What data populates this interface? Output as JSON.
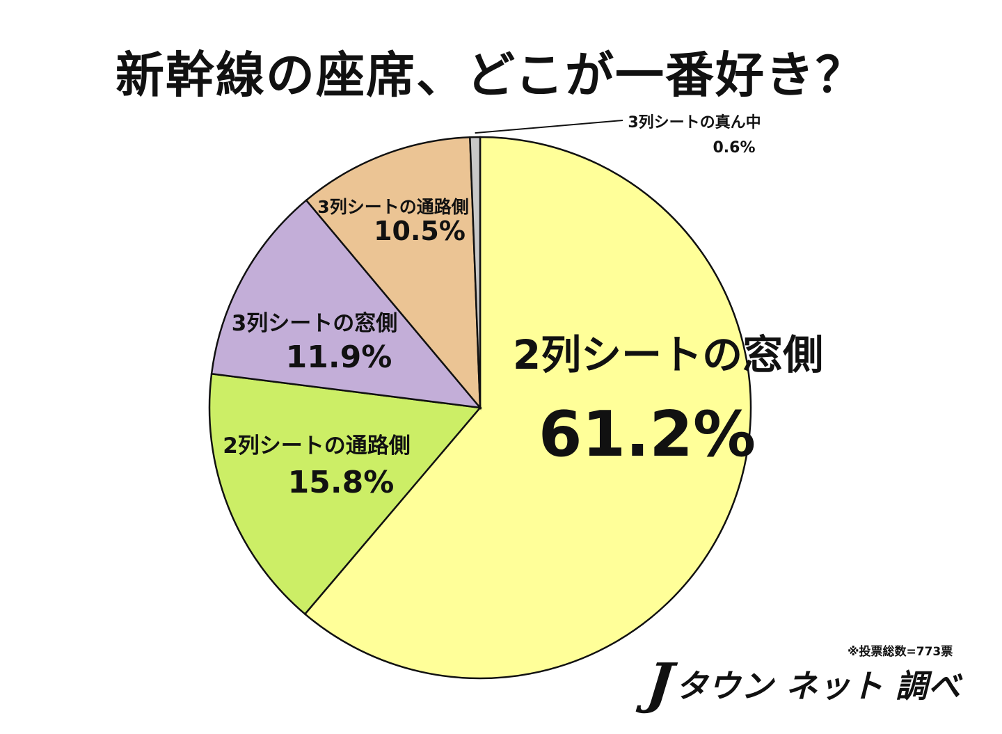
{
  "chart_data": {
    "type": "pie",
    "title": "新幹線の座席、どこが一番好き？",
    "slices": [
      {
        "label": "2列シートの窓側",
        "value": 61.2,
        "value_text": "61.2%",
        "color": "#ffff99"
      },
      {
        "label": "2列シートの通路側",
        "value": 15.8,
        "value_text": "15.8%",
        "color": "#ccee66"
      },
      {
        "label": "3列シートの窓側",
        "value": 11.9,
        "value_text": "11.9%",
        "color": "#c3aed8"
      },
      {
        "label": "3列シートの通路側",
        "value": 10.5,
        "value_text": "10.5%",
        "color": "#ebc494"
      },
      {
        "label": "3列シートの真ん中",
        "value": 0.6,
        "value_text": "0.6%",
        "color": "#c8c8c8"
      }
    ],
    "start_angle_deg": 0,
    "direction": "clockwise",
    "legend": "none",
    "labels": "on-slice"
  },
  "footnote": "※投票総数=773票",
  "logo": {
    "mark": "J",
    "text": "タウン ネット 調べ"
  }
}
